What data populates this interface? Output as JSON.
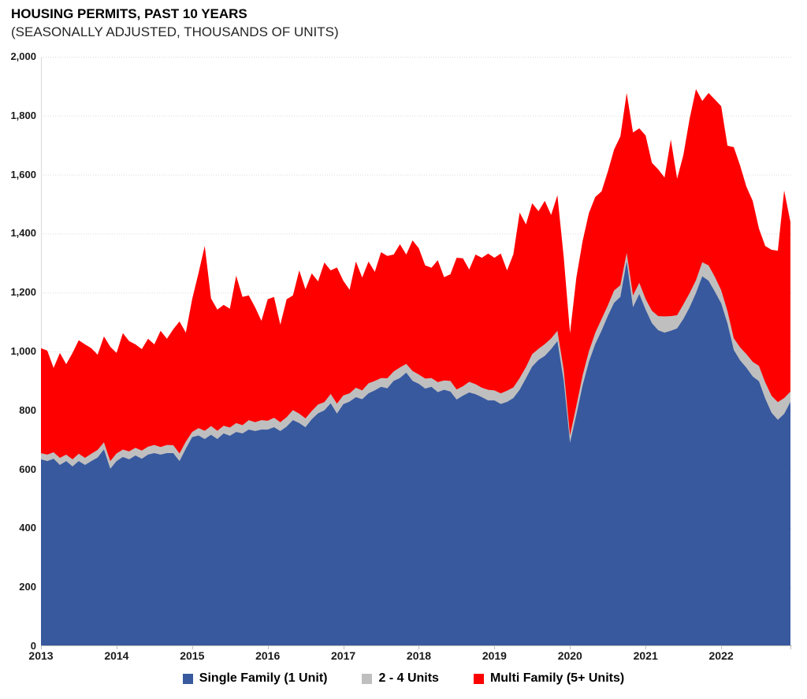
{
  "header": {
    "title": "HOUSING PERMITS, PAST 10 YEARS",
    "subtitle": "(SEASONALLY ADJUSTED, THOUSANDS OF UNITS)"
  },
  "chart_data": {
    "type": "area",
    "stacked": true,
    "title": "HOUSING PERMITS, PAST 10 YEARS",
    "subtitle": "(SEASONALLY ADJUSTED, THOUSANDS OF UNITS)",
    "x_unit": "month",
    "x_range": "2013-01 to 2022-12",
    "x_tick_labels": [
      "2013",
      "2014",
      "2015",
      "2016",
      "2017",
      "2018",
      "2019",
      "2020",
      "2021",
      "2022"
    ],
    "y_tick_labels": [
      "0",
      "200",
      "400",
      "600",
      "800",
      "1,000",
      "1,200",
      "1,400",
      "1,600",
      "1,800",
      "2,000"
    ],
    "ylim": [
      0,
      2000
    ],
    "y_tick_step": 200,
    "grid": "horizontal-dotted",
    "legend_position": "bottom",
    "series": [
      {
        "name": "Single Family (1 Unit)",
        "color": "#38599E",
        "values": [
          634,
          628,
          636,
          615,
          628,
          610,
          628,
          615,
          628,
          640,
          668,
          602,
          628,
          642,
          634,
          647,
          636,
          650,
          655,
          650,
          655,
          655,
          628,
          670,
          709,
          715,
          703,
          717,
          703,
          722,
          714,
          727,
          722,
          735,
          730,
          735,
          735,
          743,
          730,
          745,
          767,
          757,
          743,
          770,
          790,
          800,
          824,
          789,
          821,
          830,
          845,
          838,
          858,
          868,
          880,
          875,
          900,
          910,
          928,
          900,
          890,
          874,
          880,
          862,
          870,
          864,
          837,
          850,
          861,
          855,
          845,
          834,
          834,
          822,
          829,
          842,
          870,
          909,
          949,
          971,
          985,
          1008,
          1035,
          900,
          690,
          785,
          885,
          965,
          1025,
          1070,
          1120,
          1165,
          1185,
          1305,
          1150,
          1195,
          1142,
          1096,
          1072,
          1064,
          1070,
          1078,
          1110,
          1150,
          1198,
          1255,
          1240,
          1203,
          1163,
          1095,
          1005,
          970,
          945,
          915,
          899,
          840,
          792,
          768,
          788,
          829
        ]
      },
      {
        "name": "2 - 4 Units",
        "color": "#BFBFBF",
        "values": [
          21,
          22,
          22,
          24,
          22,
          24,
          25,
          24,
          25,
          26,
          24,
          26,
          26,
          25,
          27,
          26,
          28,
          27,
          28,
          26,
          28,
          27,
          26,
          24,
          18,
          25,
          28,
          30,
          28,
          26,
          28,
          30,
          28,
          32,
          30,
          32,
          30,
          32,
          30,
          32,
          34,
          32,
          30,
          28,
          30,
          28,
          32,
          34,
          30,
          28,
          32,
          30,
          34,
          32,
          30,
          34,
          32,
          36,
          30,
          34,
          32,
          34,
          30,
          34,
          32,
          36,
          34,
          32,
          36,
          34,
          32,
          36,
          34,
          36,
          38,
          36,
          40,
          38,
          42,
          38,
          40,
          36,
          35,
          38,
          25,
          30,
          34,
          36,
          38,
          40,
          36,
          42,
          40,
          30,
          40,
          38,
          36,
          42,
          48,
          55,
          50,
          45,
          50,
          48,
          44,
          48,
          52,
          50,
          45,
          42,
          40,
          44,
          46,
          50,
          52,
          55,
          58,
          60,
          54,
          35
        ]
      },
      {
        "name": "Multi Family (5+ Units)",
        "color": "#FE0000",
        "values": [
          356,
          353,
          286,
          356,
          307,
          361,
          385,
          385,
          358,
          323,
          359,
          388,
          341,
          395,
          374,
          351,
          344,
          366,
          341,
          394,
          360,
          393,
          448,
          370,
          450,
          525,
          627,
          433,
          411,
          410,
          403,
          500,
          435,
          423,
          390,
          337,
          412,
          410,
          331,
          400,
          389,
          486,
          438,
          467,
          418,
          474,
          419,
          462,
          389,
          351,
          428,
          383,
          413,
          370,
          427,
          415,
          397,
          418,
          371,
          443,
          428,
          384,
          374,
          414,
          350,
          362,
          447,
          434,
          381,
          440,
          441,
          462,
          450,
          474,
          408,
          452,
          561,
          484,
          512,
          467,
          486,
          419,
          460,
          382,
          347,
          435,
          456,
          469,
          461,
          433,
          454,
          478,
          505,
          542,
          553,
          524,
          555,
          502,
          498,
          471,
          599,
          463,
          506,
          592,
          648,
          547,
          585,
          602,
          624,
          561,
          648,
          617,
          568,
          546,
          466,
          463,
          495,
          514,
          704,
          575
        ]
      }
    ]
  },
  "colors": {
    "grid": "#D9D9D9",
    "axis_line": "#BFBFBF",
    "label_text": "#1A1A1A",
    "background": "#FFFFFF"
  }
}
